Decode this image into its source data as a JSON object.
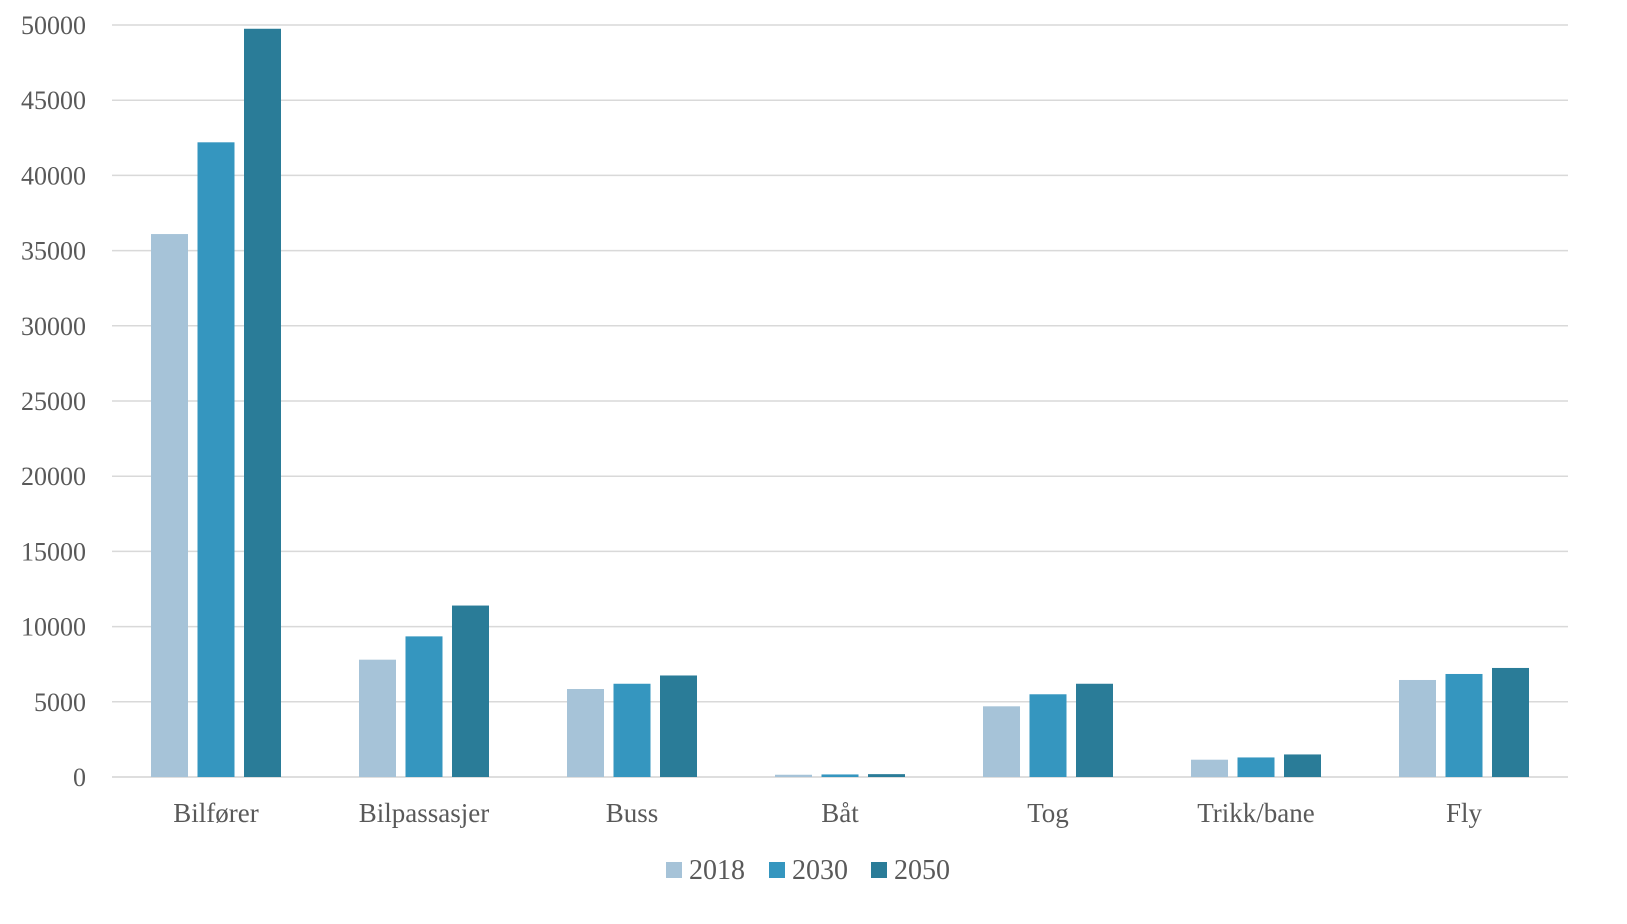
{
  "chart_data": {
    "type": "bar",
    "title": "",
    "xlabel": "",
    "ylabel": "",
    "categories": [
      "Bilfører",
      "Bilpassasjer",
      "Buss",
      "Båt",
      "Tog",
      "Trikk/bane",
      "Fly"
    ],
    "series": [
      {
        "name": "2018",
        "color": "#a6c3d8",
        "values": [
          36100,
          7800,
          5850,
          150,
          4700,
          1150,
          6450
        ]
      },
      {
        "name": "2030",
        "color": "#3596bf",
        "values": [
          42200,
          9350,
          6200,
          170,
          5500,
          1300,
          6850
        ]
      },
      {
        "name": "2050",
        "color": "#2a7c98",
        "values": [
          49750,
          11400,
          6750,
          190,
          6200,
          1500,
          7250
        ]
      }
    ],
    "ylim": [
      0,
      50000
    ],
    "yticks": [
      "0",
      "5000",
      "10000",
      "15000",
      "20000",
      "25000",
      "30000",
      "35000",
      "40000",
      "45000",
      "50000"
    ],
    "grid": true,
    "legend_position": "bottom",
    "gridline_color": "#d9d9d9"
  }
}
